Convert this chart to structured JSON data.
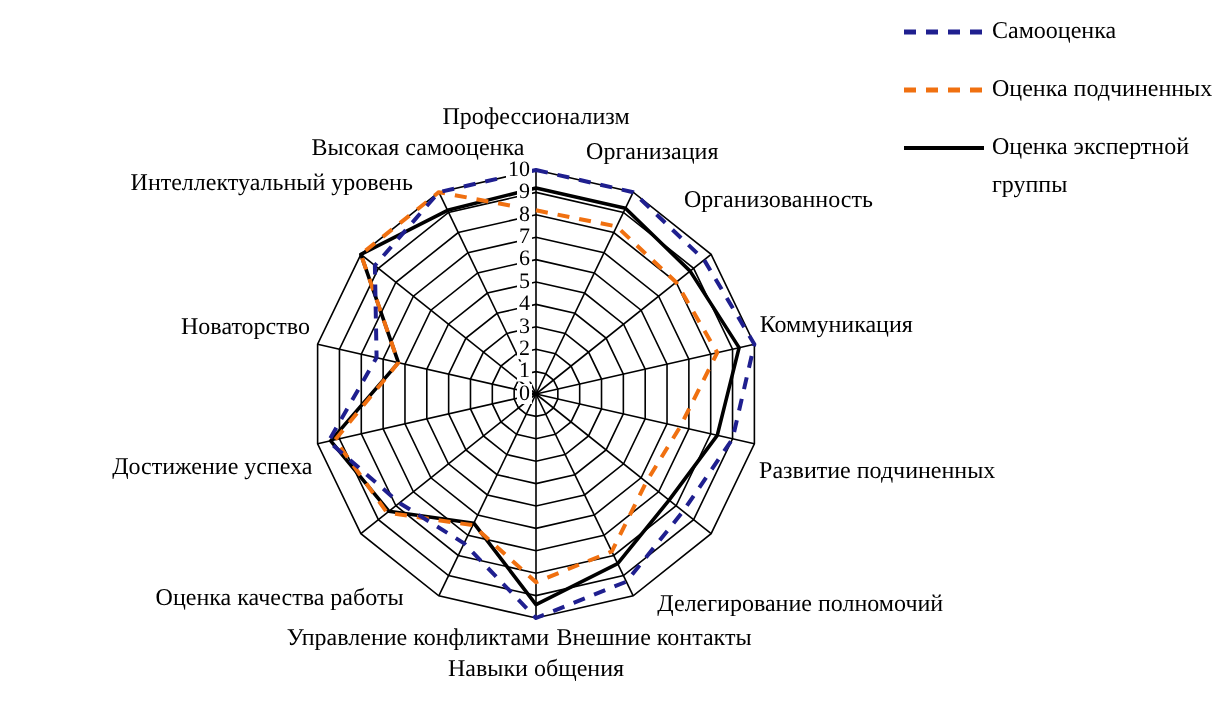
{
  "chart_data": {
    "type": "radar",
    "categories": [
      "Профессионализм",
      "Организация",
      "Организованность",
      "Коммуникация",
      "Развитие подчиненных",
      "Делегирование полномочий",
      "Внешние контакты",
      "Навыки общения",
      "Управление конфликтами",
      "Оценка качества работы",
      "Достижение успеха",
      "Новаторство",
      "Интеллектуальный уровень",
      "Высокая самооценка"
    ],
    "series": [
      {
        "name": "Самооценка",
        "color": "#1f1f8f",
        "line_style": "dashed",
        "values": [
          10,
          10,
          9.6,
          10,
          9,
          8.4,
          9.3,
          10,
          7.4,
          7.8,
          9.5,
          7.3,
          9.2,
          10
        ]
      },
      {
        "name": "Оценка подчиненных",
        "color": "#f07010",
        "line_style": "dashed",
        "values": [
          8.2,
          8.3,
          8,
          8.3,
          6.6,
          6.3,
          7.8,
          8.4,
          6.5,
          8.5,
          9.2,
          6.3,
          10,
          10
        ]
      },
      {
        "name": "Оценка экспертной группы",
        "color": "#000000",
        "line_style": "solid",
        "values": [
          9.2,
          9.2,
          8.8,
          9.3,
          8.3,
          7.6,
          8.4,
          9.4,
          6.4,
          8.4,
          9.4,
          6.3,
          10,
          9.1
        ]
      }
    ],
    "ylim": [
      0,
      10
    ],
    "yticks": [
      0,
      1,
      2,
      3,
      4,
      5,
      6,
      7,
      8,
      9,
      10
    ],
    "grid": true,
    "marker": "none",
    "legend": "top right"
  }
}
